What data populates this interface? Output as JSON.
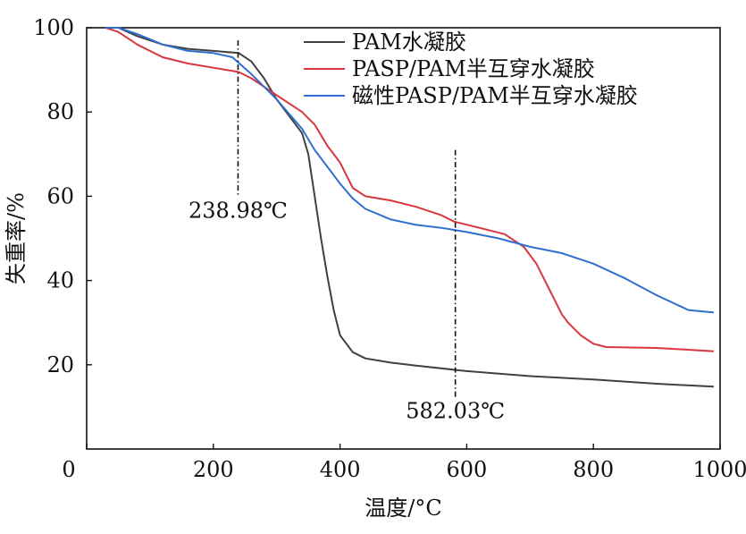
{
  "chart_data": {
    "type": "line",
    "title": "",
    "xlabel": "温度/°C",
    "ylabel": "失重率/%",
    "xlim": [
      0,
      1000
    ],
    "ylim": [
      0,
      100
    ],
    "x_ticks": [
      0,
      200,
      400,
      600,
      800,
      1000
    ],
    "y_ticks": [
      20,
      40,
      60,
      80,
      100
    ],
    "grid": false,
    "legend_position": "top-right",
    "series": [
      {
        "name": "PAM水凝胶",
        "color": "#404040",
        "x": [
          30,
          50,
          80,
          120,
          160,
          200,
          240,
          260,
          280,
          300,
          320,
          340,
          350,
          360,
          370,
          380,
          390,
          400,
          420,
          440,
          480,
          520,
          600,
          700,
          800,
          900,
          990
        ],
        "y": [
          100,
          100,
          98,
          96,
          95,
          94.5,
          94,
          92,
          88,
          83,
          79,
          75,
          70,
          60,
          50,
          41,
          33,
          27,
          23,
          21.5,
          20.5,
          19.8,
          18.5,
          17.3,
          16.5,
          15.5,
          14.8
        ]
      },
      {
        "name": "PASP/PAM半互穿水凝胶",
        "color": "#d9363e",
        "x": [
          30,
          50,
          80,
          120,
          160,
          200,
          240,
          260,
          280,
          300,
          320,
          340,
          360,
          380,
          400,
          420,
          440,
          480,
          520,
          560,
          580,
          620,
          660,
          690,
          710,
          730,
          750,
          760,
          780,
          800,
          820,
          900,
          990
        ],
        "y": [
          100,
          99,
          96,
          93,
          91.5,
          90.5,
          89.5,
          88,
          86,
          84,
          82,
          80,
          77,
          72,
          68,
          62,
          60,
          59,
          57.5,
          55.5,
          54,
          52.5,
          51,
          48,
          44,
          38,
          32,
          30,
          27,
          25,
          24.2,
          24,
          23.2
        ]
      },
      {
        "name": "磁性PASP/PAM半互穿水凝胶",
        "color": "#2e6fcf",
        "x": [
          30,
          50,
          80,
          120,
          160,
          200,
          230,
          260,
          280,
          300,
          320,
          340,
          360,
          380,
          400,
          420,
          440,
          480,
          520,
          560,
          600,
          650,
          700,
          750,
          800,
          850,
          900,
          950,
          990
        ],
        "y": [
          100,
          100,
          98.5,
          96,
          94.5,
          94,
          93,
          89,
          86,
          83,
          79.5,
          76,
          71,
          67,
          63,
          59.5,
          57,
          54.5,
          53.2,
          52.5,
          51.5,
          50,
          48,
          46.5,
          44,
          40.5,
          36.5,
          33,
          32.4
        ]
      }
    ],
    "annotations": [
      {
        "text": "238.98℃",
        "x": 238.98,
        "y_top": 97,
        "y_bottom": 60
      },
      {
        "text": "582.03℃",
        "x": 582.03,
        "y_top": 71,
        "y_bottom": 12
      }
    ]
  }
}
